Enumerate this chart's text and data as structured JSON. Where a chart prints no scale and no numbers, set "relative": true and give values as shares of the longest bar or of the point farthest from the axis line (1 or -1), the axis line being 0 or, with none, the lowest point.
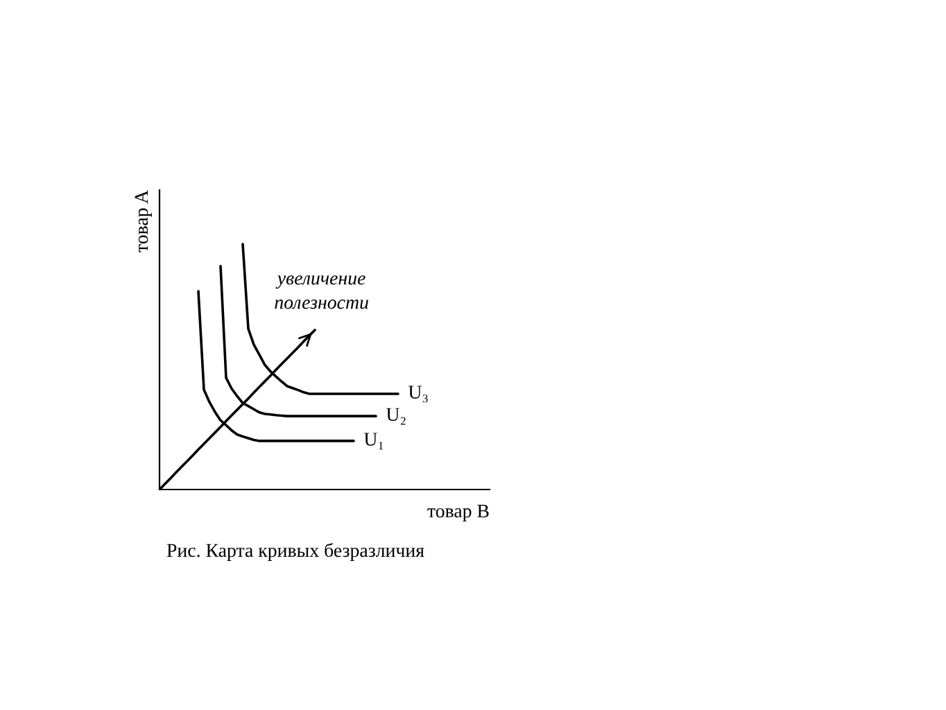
{
  "chart_data": {
    "type": "line",
    "relative": true,
    "xlabel": "товар B",
    "ylabel": "товар A",
    "line_style": "solid",
    "categories": [
      null,
      null,
      null,
      null,
      null,
      null,
      null,
      null,
      null,
      null,
      null,
      null,
      null,
      null,
      null,
      null,
      null,
      null,
      null,
      null,
      null,
      null,
      null,
      null,
      null,
      null,
      null,
      null,
      null,
      null,
      null,
      null,
      null,
      null,
      null,
      null,
      null,
      null,
      null,
      null,
      null,
      null,
      null,
      null,
      null,
      null,
      null,
      null,
      null,
      null,
      null,
      null,
      null,
      null,
      null,
      null,
      null,
      null,
      null,
      null
    ],
    "series": [
      {
        "name": "U₁",
        "color": "#000000",
        "values": [
          null,
          null,
          null,
          null,
          null,
          null,
          null,
          0.808,
          0.407,
          0.356,
          0.316,
          0.282,
          0.262,
          0.241,
          0.224,
          0.216,
          0.209,
          0.202,
          0.198,
          0.198,
          0.198,
          0.198,
          0.198,
          0.198,
          0.198,
          0.198,
          0.198,
          0.198,
          0.198,
          0.198,
          0.198,
          0.198,
          0.198,
          0.198,
          0.198,
          0.198,
          null,
          null,
          null,
          null,
          null,
          null,
          null,
          null,
          null,
          null,
          null,
          null,
          null,
          null,
          null,
          null,
          null,
          null,
          null,
          null,
          null,
          null,
          null,
          null
        ]
      },
      {
        "name": "U₂",
        "color": "#000000",
        "values": [
          null,
          null,
          null,
          null,
          null,
          null,
          null,
          null,
          null,
          null,
          null,
          0.91,
          0.455,
          0.411,
          0.38,
          0.352,
          0.34,
          0.327,
          0.314,
          0.308,
          0.306,
          0.303,
          0.301,
          0.299,
          0.299,
          0.299,
          0.299,
          0.299,
          0.299,
          0.299,
          0.299,
          0.299,
          0.299,
          0.299,
          0.299,
          0.299,
          0.299,
          0.299,
          0.299,
          0.299,
          null,
          null,
          null,
          null,
          null,
          null,
          null,
          null,
          null,
          null,
          null,
          null,
          null,
          null,
          null,
          null,
          null,
          null,
          null,
          null
        ]
      },
      {
        "name": "U₃",
        "color": "#000000",
        "values": [
          null,
          null,
          null,
          null,
          null,
          null,
          null,
          null,
          null,
          null,
          null,
          null,
          null,
          null,
          null,
          1.0,
          0.655,
          0.59,
          0.549,
          0.507,
          0.481,
          0.46,
          0.44,
          0.421,
          0.413,
          0.405,
          0.396,
          0.39,
          0.39,
          0.39,
          0.39,
          0.39,
          0.39,
          0.39,
          0.39,
          0.39,
          0.39,
          0.39,
          0.39,
          0.39,
          0.39,
          0.39,
          0.39,
          0.39,
          null,
          null,
          null,
          null,
          null,
          null,
          null,
          null,
          null,
          null,
          null,
          null,
          null,
          null,
          null,
          null
        ]
      },
      {
        "color": "#000000",
        "values": [
          0,
          0.023,
          0.046,
          0.07,
          0.093,
          0.116,
          0.139,
          0.163,
          0.186,
          0.209,
          0.232,
          0.255,
          0.279,
          0.302,
          0.325,
          0.348,
          0.371,
          0.395,
          0.418,
          0.441,
          0.464,
          0.488,
          0.511,
          0.534,
          0.557,
          0.58,
          0.604,
          0.627,
          0.65,
          null,
          null,
          null,
          null,
          null,
          null,
          null,
          null,
          null,
          null,
          null,
          null,
          null,
          null,
          null,
          null,
          null,
          null,
          null,
          null,
          null,
          null,
          null,
          null,
          null,
          null,
          null,
          null,
          null,
          null,
          null
        ]
      }
    ],
    "annotations": [
      "увеличение\nполезности",
      "Рис. Карта кривых безразличия"
    ]
  }
}
